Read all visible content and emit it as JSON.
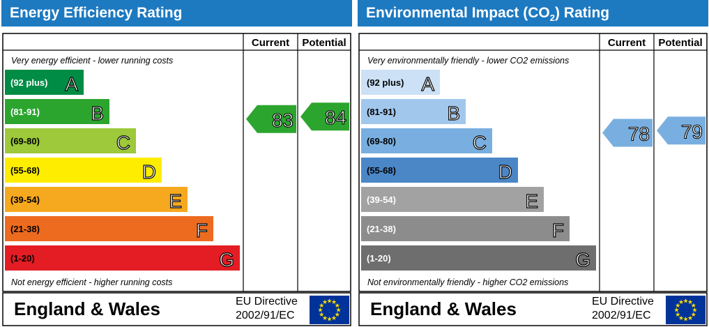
{
  "colors": {
    "header_bg": "#1d79c0",
    "energy_bands": [
      "#008c44",
      "#2ca52f",
      "#9dc93a",
      "#ffed00",
      "#f6a81e",
      "#ed6b1f",
      "#e31d23"
    ],
    "environmental_bands": [
      "#cce1f5",
      "#a2c7ec",
      "#79afe0",
      "#4b86c7",
      "#a2a2a2",
      "#8c8c8c",
      "#6e6e6e"
    ],
    "energy_arrow": "#2ca52f",
    "environmental_arrow": "#79afe0",
    "eu_flag": "#003399",
    "eu_stars": "#ffdd00"
  },
  "panels": [
    {
      "title": "Energy Efficiency Rating",
      "col_current": "Current",
      "col_potential": "Potential",
      "top_note": "Very energy efficient - lower running costs",
      "bottom_note": "Not energy efficient - higher running costs",
      "footer_region": "England & Wales",
      "eu_line1": "EU Directive",
      "eu_line2": "2002/91/EC"
    },
    {
      "title_main": "Environmental Impact (CO",
      "title_sub": "2",
      "title_end": ") Rating",
      "col_current": "Current",
      "col_potential": "Potential",
      "top_note": "Very environmentally friendly - lower CO2 emissions",
      "bottom_note": "Not environmentally friendly - higher CO2 emissions",
      "footer_region": "England & Wales",
      "eu_line1": "EU Directive",
      "eu_line2": "2002/91/EC"
    }
  ],
  "chart_data": [
    {
      "type": "bar",
      "title": "Energy Efficiency Rating",
      "categories": [
        "(92 plus)",
        "(81-91)",
        "(69-80)",
        "(55-68)",
        "(39-54)",
        "(21-38)",
        "(1-20)"
      ],
      "band_letters": [
        "A",
        "B",
        "C",
        "D",
        "E",
        "F",
        "G"
      ],
      "current": 83,
      "potential": 84
    },
    {
      "type": "bar",
      "title": "Environmental Impact (CO2) Rating",
      "categories": [
        "(92 plus)",
        "(81-91)",
        "(69-80)",
        "(55-68)",
        "(39-54)",
        "(21-38)",
        "(1-20)"
      ],
      "band_letters": [
        "A",
        "B",
        "C",
        "D",
        "E",
        "F",
        "G"
      ],
      "current": 78,
      "potential": 79
    }
  ]
}
